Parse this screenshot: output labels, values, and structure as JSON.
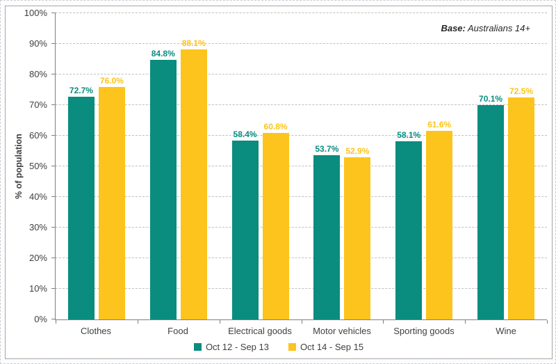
{
  "base_note": {
    "prefix": "Base:",
    "text": "Australians 14+"
  },
  "chart_data": {
    "type": "bar",
    "categories": [
      "Clothes",
      "Food",
      "Electrical goods",
      "Motor vehicles",
      "Sporting goods",
      "Wine"
    ],
    "series": [
      {
        "name": "Oct 12 - Sep 13",
        "color": "#0a8c7f",
        "values": [
          72.7,
          84.8,
          58.4,
          53.7,
          58.1,
          70.1
        ]
      },
      {
        "name": "Oct 14 - Sep 15",
        "color": "#fcc41d",
        "values": [
          76.0,
          88.1,
          60.8,
          52.9,
          61.6,
          72.5
        ]
      }
    ],
    "title": "",
    "xlabel": "",
    "ylabel": "% of population",
    "ylim": [
      0,
      100
    ],
    "ytick_step": 10,
    "ytick_suffix": "%",
    "value_label_decimals": 1,
    "value_label_suffix": "%",
    "grid": "horizontal-dashed",
    "legend_position": "bottom-center",
    "axis_color": "#7f7f7f",
    "gridline_color": "#bfbfbf",
    "text_color": "#3f3f3f"
  }
}
